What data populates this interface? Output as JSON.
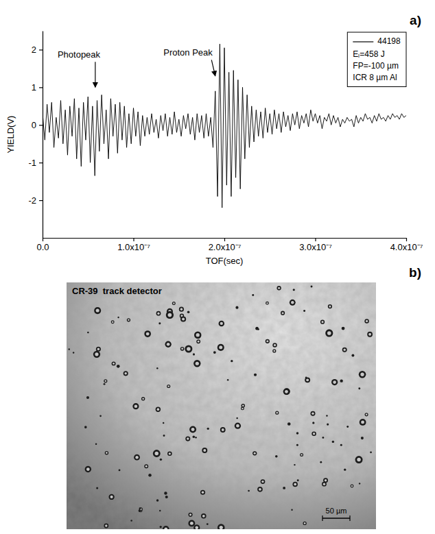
{
  "chart_data": {
    "type": "line",
    "panel_label": "a)",
    "xlabel": "TOF(sec)",
    "ylabel": "YIELD(V)",
    "xlim": [
      0,
      4e-07
    ],
    "ylim": [
      -3,
      2.5
    ],
    "xticks": [
      {
        "value": 0,
        "label": "0.0"
      },
      {
        "value": 1e-07,
        "label": "1.0x10⁻⁷"
      },
      {
        "value": 2e-07,
        "label": "2.0x10⁻⁷"
      },
      {
        "value": 3e-07,
        "label": "3.0x10⁻⁷"
      },
      {
        "value": 4e-07,
        "label": "4.0x10⁻⁷"
      }
    ],
    "yticks": [
      -2,
      -1,
      0,
      1,
      2
    ],
    "legend": "upper right",
    "legend_text": [
      "Eₗ=458 J",
      "FP=-100 µm",
      "ICR 8 µm Al"
    ],
    "annotations": [
      {
        "text": "Photopeak",
        "x": 4e-08,
        "y": 1.85,
        "arrow_x": 5.8e-08,
        "arrow_y": 1.0
      },
      {
        "text": "Proton Peak",
        "x": 1.6e-07,
        "y": 1.9,
        "arrow_x": 1.9e-07,
        "arrow_y": 1.3
      }
    ],
    "x": [
      0,
      2.5e-09,
      5e-09,
      7.5e-09,
      1e-08,
      1.25e-08,
      1.5e-08,
      1.75e-08,
      2e-08,
      2.25e-08,
      2.5e-08,
      2.75e-08,
      3e-08,
      3.25e-08,
      3.5e-08,
      3.75e-08,
      4e-08,
      4.25e-08,
      4.5e-08,
      4.75e-08,
      5e-08,
      5.25e-08,
      5.5e-08,
      5.75e-08,
      6e-08,
      6.25e-08,
      6.5e-08,
      6.75e-08,
      7e-08,
      7.25e-08,
      7.5e-08,
      7.75e-08,
      8e-08,
      8.25e-08,
      8.5e-08,
      8.75e-08,
      9e-08,
      9.25e-08,
      9.5e-08,
      9.75e-08,
      1e-07,
      1.025e-07,
      1.05e-07,
      1.075e-07,
      1.1e-07,
      1.125e-07,
      1.15e-07,
      1.175e-07,
      1.2e-07,
      1.225e-07,
      1.25e-07,
      1.275e-07,
      1.3e-07,
      1.325e-07,
      1.35e-07,
      1.375e-07,
      1.4e-07,
      1.425e-07,
      1.45e-07,
      1.475e-07,
      1.5e-07,
      1.525e-07,
      1.55e-07,
      1.575e-07,
      1.6e-07,
      1.625e-07,
      1.65e-07,
      1.675e-07,
      1.7e-07,
      1.725e-07,
      1.75e-07,
      1.775e-07,
      1.8e-07,
      1.825e-07,
      1.85e-07,
      1.875e-07,
      1.9e-07,
      1.925e-07,
      1.95e-07,
      1.975e-07,
      2e-07,
      2.025e-07,
      2.05e-07,
      2.075e-07,
      2.1e-07,
      2.125e-07,
      2.15e-07,
      2.175e-07,
      2.2e-07,
      2.225e-07,
      2.25e-07,
      2.275e-07,
      2.3e-07,
      2.325e-07,
      2.35e-07,
      2.375e-07,
      2.4e-07,
      2.425e-07,
      2.45e-07,
      2.475e-07,
      2.5e-07,
      2.525e-07,
      2.55e-07,
      2.575e-07,
      2.6e-07,
      2.625e-07,
      2.65e-07,
      2.675e-07,
      2.7e-07,
      2.725e-07,
      2.75e-07,
      2.775e-07,
      2.8e-07,
      2.825e-07,
      2.85e-07,
      2.875e-07,
      2.9e-07,
      2.925e-07,
      2.95e-07,
      2.975e-07,
      3e-07,
      3.025e-07,
      3.05e-07,
      3.075e-07,
      3.1e-07,
      3.125e-07,
      3.15e-07,
      3.175e-07,
      3.2e-07,
      3.225e-07,
      3.25e-07,
      3.275e-07,
      3.3e-07,
      3.325e-07,
      3.35e-07,
      3.375e-07,
      3.4e-07,
      3.425e-07,
      3.45e-07,
      3.475e-07,
      3.5e-07,
      3.525e-07,
      3.55e-07,
      3.575e-07,
      3.6e-07,
      3.625e-07,
      3.65e-07,
      3.675e-07,
      3.7e-07,
      3.725e-07,
      3.75e-07,
      3.775e-07,
      3.8e-07,
      3.825e-07,
      3.85e-07,
      3.875e-07,
      3.9e-07,
      3.925e-07,
      3.95e-07,
      3.975e-07,
      4e-07
    ],
    "series": [
      {
        "name": "44198",
        "color": "#000000",
        "values": [
          0.3,
          -0.4,
          0.55,
          -0.2,
          0.6,
          -0.6,
          0.2,
          -0.35,
          0.65,
          -0.5,
          0.4,
          -0.8,
          0.5,
          -0.3,
          0.7,
          -0.9,
          0.45,
          -1.1,
          0.6,
          -0.4,
          0.75,
          -1.0,
          0.5,
          -1.35,
          0.65,
          -0.7,
          0.8,
          -0.5,
          0.4,
          -0.9,
          0.7,
          -0.3,
          0.55,
          -0.75,
          0.6,
          -0.4,
          0.5,
          -0.6,
          0.3,
          -0.5,
          0.45,
          -0.3,
          0.35,
          -0.55,
          0.25,
          -0.3,
          0.2,
          -0.25,
          0.3,
          -0.2,
          0.15,
          -0.35,
          0.25,
          -0.15,
          0.3,
          -0.3,
          0.2,
          -0.25,
          0.35,
          -0.2,
          0.15,
          -0.3,
          0.25,
          -0.1,
          0.3,
          -0.25,
          0.2,
          -0.4,
          0.3,
          -0.2,
          0.25,
          -0.35,
          0.3,
          -0.3,
          0.2,
          -0.6,
          0.9,
          -1.9,
          2.15,
          -2.2,
          2.05,
          -1.6,
          1.4,
          -1.9,
          1.45,
          -1.4,
          1.2,
          -1.7,
          1.0,
          -0.9,
          0.8,
          -0.6,
          0.5,
          -0.45,
          0.4,
          -0.3,
          0.35,
          -0.35,
          0.45,
          -0.2,
          0.3,
          -0.25,
          0.4,
          -0.1,
          0.3,
          -0.2,
          0.35,
          -0.05,
          0.25,
          -0.15,
          0.3,
          0.0,
          0.35,
          -0.1,
          0.25,
          0.05,
          0.3,
          -0.05,
          0.4,
          0.1,
          0.3,
          0.05,
          0.25,
          -0.1,
          0.2,
          0.1,
          0.3,
          0.0,
          0.25,
          0.05,
          0.2,
          -0.05,
          0.15,
          0.05,
          0.2,
          0.1,
          0.15,
          -0.05,
          0.25,
          0.05,
          0.2,
          0.1,
          0.3,
          0.15,
          0.2,
          0.05,
          0.25,
          0.1,
          0.3,
          0.15,
          0.2,
          0.1,
          0.25,
          0.15,
          0.3,
          0.2,
          0.25,
          0.15,
          0.3,
          0.2,
          0.25
        ]
      }
    ]
  },
  "image": {
    "panel_label": "b)",
    "label": "CR-39  track detector",
    "scale_bar": "50 µm"
  }
}
